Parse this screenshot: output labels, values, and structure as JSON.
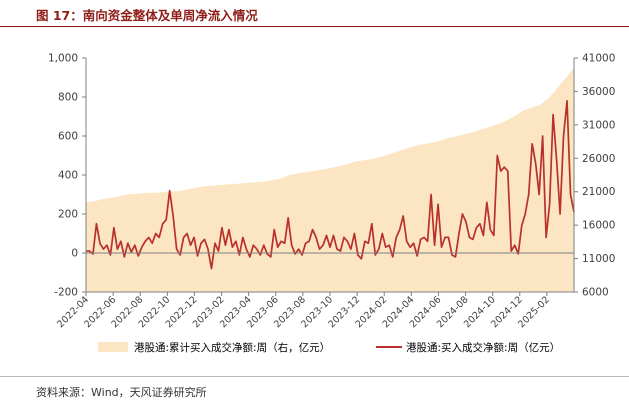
{
  "figure": {
    "title": "图 17：南向资金整体及单周净流入情况",
    "source": "资料来源：Wind，天风证券研究所"
  },
  "colors": {
    "title": "#8f1d18",
    "area_fill": "#fce5c2",
    "line": "#b8312a",
    "axis": "#7f7f7f",
    "text": "#404040"
  },
  "chart_data": {
    "type": "line",
    "title": "",
    "xlabel": "",
    "ylabel_left": "",
    "ylabel_right": "",
    "x_tick_labels": [
      "2022-04",
      "2022-06",
      "2022-08",
      "2022-10",
      "2022-12",
      "2023-02",
      "2023-04",
      "2023-06",
      "2023-08",
      "2023-10",
      "2023-12",
      "2024-02",
      "2024-04",
      "2024-06",
      "2024-08",
      "2024-10",
      "2024-12",
      "2025-02"
    ],
    "y_left": {
      "min": -200,
      "max": 1000,
      "ticks": [
        -200,
        0,
        200,
        400,
        600,
        800,
        1000
      ],
      "tick_labels": [
        "-200",
        "0",
        "200",
        "400",
        "600",
        "800",
        "1,000"
      ]
    },
    "y_right": {
      "min": 6000,
      "max": 41000,
      "ticks": [
        6000,
        11000,
        16000,
        21000,
        26000,
        31000,
        36000,
        41000
      ],
      "tick_labels": [
        "6000",
        "11000",
        "16000",
        "21000",
        "26000",
        "31000",
        "36000",
        "41000"
      ]
    },
    "legend_position": "bottom",
    "grid": false,
    "series": [
      {
        "name": "港股通:累计买入成交净额:周（右，亿元）",
        "type": "area",
        "axis": "right",
        "x_start": "2022-04",
        "x_end": "2025-04",
        "values": [
          19400,
          19600,
          19900,
          20100,
          20300,
          20600,
          20700,
          20800,
          20850,
          20900,
          21000,
          21100,
          21300,
          21600,
          21800,
          21900,
          22000,
          22100,
          22200,
          22300,
          22400,
          22500,
          22700,
          22900,
          23400,
          23700,
          23900,
          24100,
          24300,
          24500,
          24800,
          25100,
          25500,
          25700,
          25900,
          26200,
          26600,
          27000,
          27400,
          27800,
          28100,
          28300,
          28600,
          29000,
          29300,
          29600,
          29900,
          30300,
          30700,
          31100,
          31700,
          32300,
          33200,
          33600,
          34000,
          35000,
          36500,
          38000,
          39500
        ]
      },
      {
        "name": "港股通:买入成交净额:周（亿元）",
        "type": "line",
        "axis": "left",
        "x_start": "2022-04",
        "x_end": "2025-04",
        "values": [
          10,
          10,
          -5,
          150,
          50,
          20,
          40,
          -10,
          130,
          20,
          60,
          -20,
          50,
          5,
          40,
          -15,
          30,
          60,
          80,
          50,
          100,
          80,
          150,
          170,
          320,
          190,
          20,
          -10,
          80,
          100,
          40,
          80,
          -15,
          50,
          70,
          20,
          -80,
          50,
          10,
          130,
          40,
          120,
          30,
          60,
          -10,
          80,
          20,
          -20,
          40,
          20,
          -10,
          40,
          -5,
          -20,
          120,
          30,
          60,
          50,
          180,
          40,
          -5,
          20,
          -10,
          50,
          60,
          120,
          80,
          20,
          40,
          90,
          30,
          90,
          20,
          10,
          80,
          60,
          20,
          100,
          -10,
          -30,
          60,
          50,
          150,
          -10,
          20,
          100,
          30,
          40,
          -20,
          80,
          120,
          190,
          60,
          30,
          50,
          -15,
          70,
          80,
          60,
          300,
          40,
          250,
          30,
          80,
          80,
          -10,
          -20,
          100,
          200,
          160,
          80,
          70,
          130,
          150,
          90,
          260,
          120,
          90,
          500,
          420,
          440,
          420,
          10,
          40,
          -5,
          140,
          200,
          300,
          560,
          460,
          300,
          600,
          80,
          250,
          710,
          480,
          200,
          600,
          780,
          300,
          210
        ]
      }
    ]
  }
}
